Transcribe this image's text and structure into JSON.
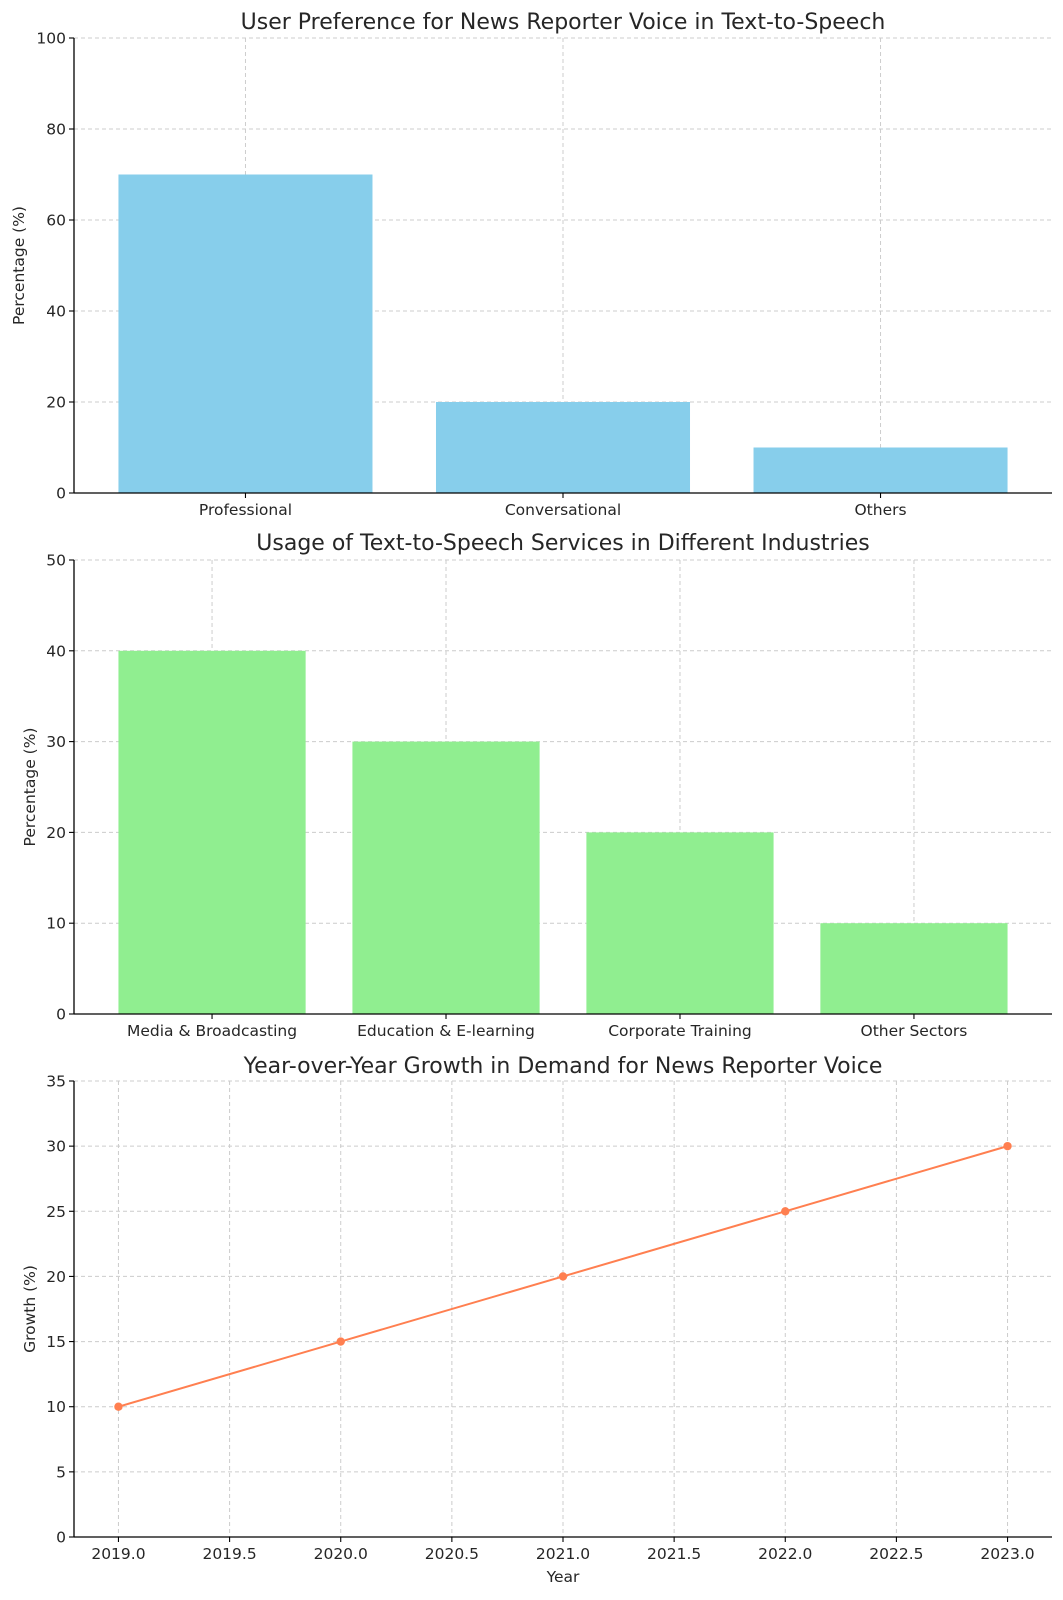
{
  "chart_data": [
    {
      "type": "bar",
      "title": "User Preference for News Reporter Voice in Text-to-Speech",
      "xlabel": "",
      "ylabel": "Percentage (%)",
      "categories": [
        "Professional",
        "Conversational",
        "Others"
      ],
      "values": [
        70,
        20,
        10
      ],
      "ylim": [
        0,
        100
      ],
      "yticks": [
        0,
        20,
        40,
        60,
        80,
        100
      ],
      "ytick_labels": [
        "0",
        "20",
        "40",
        "60",
        "80",
        "100"
      ],
      "color": "#87ceeb",
      "grid": true
    },
    {
      "type": "bar",
      "title": "Usage of Text-to-Speech Services in Different Industries",
      "xlabel": "",
      "ylabel": "Percentage (%)",
      "categories": [
        "Media & Broadcasting",
        "Education & E-learning",
        "Corporate Training",
        "Other Sectors"
      ],
      "values": [
        40,
        30,
        20,
        10
      ],
      "ylim": [
        0,
        50
      ],
      "yticks": [
        0,
        10,
        20,
        30,
        40,
        50
      ],
      "ytick_labels": [
        "0",
        "10",
        "20",
        "30",
        "40",
        "50"
      ],
      "color": "#90ee90",
      "grid": true
    },
    {
      "type": "line",
      "title": "Year-over-Year Growth in Demand for News Reporter Voice",
      "xlabel": "Year",
      "ylabel": "Growth (%)",
      "x": [
        2019,
        2020,
        2021,
        2022,
        2023
      ],
      "values": [
        10,
        15,
        20,
        25,
        30
      ],
      "xlim": [
        2018.8,
        2023.2
      ],
      "xticks": [
        2019.0,
        2019.5,
        2020.0,
        2020.5,
        2021.0,
        2021.5,
        2022.0,
        2022.5,
        2023.0
      ],
      "xtick_labels": [
        "2019.0",
        "2019.5",
        "2020.0",
        "2020.5",
        "2021.0",
        "2021.5",
        "2022.0",
        "2022.5",
        "2023.0"
      ],
      "ylim": [
        0,
        35
      ],
      "yticks": [
        0,
        5,
        10,
        15,
        20,
        25,
        30,
        35
      ],
      "ytick_labels": [
        "0",
        "5",
        "10",
        "15",
        "20",
        "25",
        "30",
        "35"
      ],
      "color": "#ff7f50",
      "marker": "circle",
      "grid": true
    }
  ]
}
